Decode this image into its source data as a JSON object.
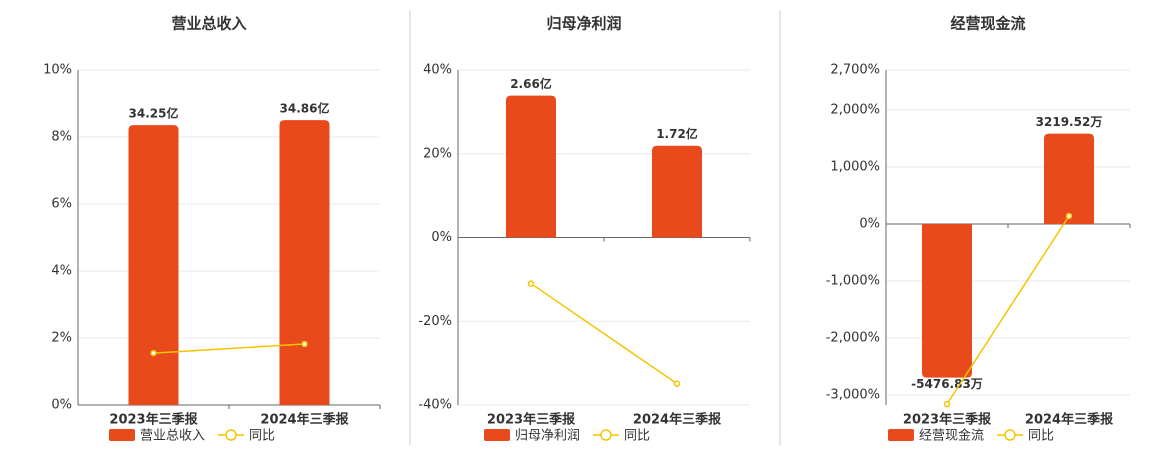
{
  "chart_data": [
    {
      "type": "bar",
      "title": "营业总收入",
      "categories": [
        "2023年三季报",
        "2024年三季报"
      ],
      "series": [
        {
          "name": "营业总收入",
          "type": "bar",
          "axis": "y2",
          "color": "#e84a1c",
          "values": [
            34.25,
            34.86
          ],
          "value_labels": [
            "34.25亿",
            "34.86亿"
          ]
        },
        {
          "name": "同比",
          "type": "line",
          "color": "#f5c400",
          "values": [
            1.55,
            1.82
          ]
        }
      ],
      "ylim": [
        0,
        10
      ],
      "yticks": [
        {
          "value": 0,
          "label": "0%"
        },
        {
          "value": 2,
          "label": "2%"
        },
        {
          "value": 4,
          "label": "4%"
        },
        {
          "value": 6,
          "label": "6%"
        },
        {
          "value": 8,
          "label": "8%"
        },
        {
          "value": 10,
          "label": "10%"
        }
      ],
      "y2lim": [
        0,
        41
      ],
      "grid": true
    },
    {
      "type": "bar",
      "title": "归母净利润",
      "categories": [
        "2023年三季报",
        "2024年三季报"
      ],
      "series": [
        {
          "name": "归母净利润",
          "type": "bar",
          "axis": "y2",
          "color": "#e84a1c",
          "values": [
            2.66,
            1.72
          ],
          "value_labels": [
            "2.66亿",
            "1.72亿"
          ]
        },
        {
          "name": "同比",
          "type": "line",
          "color": "#f5c400",
          "values": [
            -11,
            -34.9
          ]
        }
      ],
      "ylim": [
        -40,
        40
      ],
      "yticks": [
        {
          "value": -40,
          "label": "-40%"
        },
        {
          "value": -20,
          "label": "-20%"
        },
        {
          "value": 0,
          "label": "0%"
        },
        {
          "value": 20,
          "label": "20%"
        },
        {
          "value": 40,
          "label": "40%"
        }
      ],
      "y2lim": [
        -3.14,
        3.14
      ],
      "grid": true
    },
    {
      "type": "bar",
      "title": "经营现金流",
      "categories": [
        "2023年三季报",
        "2024年三季报"
      ],
      "series": [
        {
          "name": "经营现金流",
          "type": "bar",
          "axis": "y2",
          "color": "#e84a1c",
          "values": [
            -5476.83,
            3219.52
          ],
          "value_labels": [
            "-5476.83万",
            "3219.52万"
          ]
        },
        {
          "name": "同比",
          "type": "line",
          "color": "#f5c400",
          "values": [
            -3160,
            140
          ]
        }
      ],
      "ylim": [
        -3175,
        2700
      ],
      "yticks": [
        {
          "value": -3000,
          "label": "-3,000%"
        },
        {
          "value": -2000,
          "label": "-2,000%"
        },
        {
          "value": -1000,
          "label": "-1,000%"
        },
        {
          "value": 0,
          "label": "0%"
        },
        {
          "value": 1000,
          "label": "1,000%"
        },
        {
          "value": 2000,
          "label": "2,000%"
        },
        {
          "value": 2700,
          "label": "2,700%"
        }
      ],
      "y2lim": [
        -6455,
        5490
      ],
      "grid": true
    }
  ]
}
